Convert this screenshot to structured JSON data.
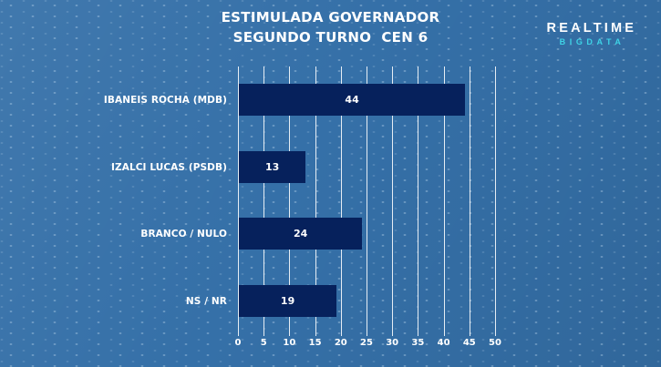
{
  "header": {
    "title_line1": "ESTIMULADA GOVERNADOR",
    "title_line2": "SEGUNDO TURNO  CEN 6"
  },
  "logo": {
    "top": "REALTIME",
    "bottom": "BIGDATA"
  },
  "colors": {
    "background": "#3570a8",
    "bar": "#06215c",
    "gridline": "#ffffff",
    "text": "#ffffff",
    "logo_top": "#ffffff",
    "logo_bottom": "#3ed3e6"
  },
  "chart_data": {
    "type": "bar",
    "orientation": "horizontal",
    "title": "ESTIMULADA GOVERNADOR SEGUNDO TURNO CEN 6",
    "categories": [
      "IBANEIS ROCHA (MDB)",
      "IZALCI LUCAS (PSDB)",
      "BRANCO / NULO",
      "NS / NR"
    ],
    "values": [
      44,
      13,
      24,
      19
    ],
    "xlim": [
      0,
      50
    ],
    "x_ticks": [
      0,
      5,
      10,
      15,
      20,
      25,
      30,
      35,
      40,
      45,
      50
    ],
    "grid": true,
    "legend": false,
    "value_label_position": "center-of-bar"
  }
}
